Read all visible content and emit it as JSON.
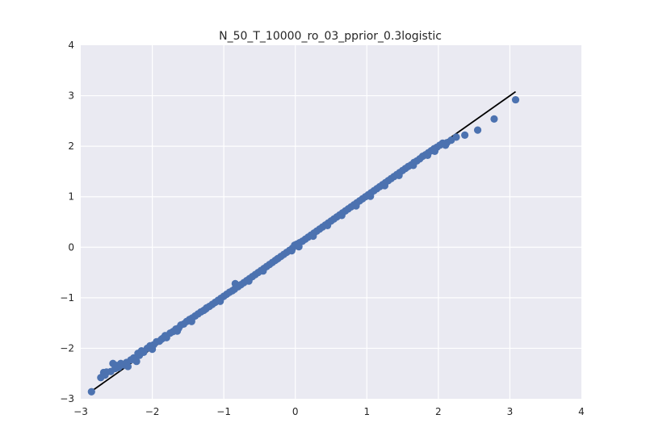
{
  "chart_data": {
    "type": "scatter",
    "title": "N_50_T_10000_ro_03_pprior_0.3logistic",
    "xlabel": "",
    "ylabel": "",
    "xlim": [
      -3,
      4
    ],
    "ylim": [
      -3,
      4
    ],
    "xticks": [
      "−3",
      "−2",
      "−1",
      "0",
      "1",
      "2",
      "3",
      "4"
    ],
    "yticks": [
      "−3",
      "−2",
      "−1",
      "0",
      "1",
      "2",
      "3",
      "4"
    ],
    "grid": true,
    "colors": {
      "background": "#EAEAF2",
      "grid": "#FFFFFF",
      "points": "#4C72B0",
      "line": "#000000"
    },
    "reference_line": {
      "x": [
        -2.85,
        3.08
      ],
      "y": [
        -2.85,
        3.08
      ]
    },
    "series": [
      {
        "points": [
          [
            -2.85,
            -2.86
          ],
          [
            -2.68,
            -2.48
          ],
          [
            -2.66,
            -2.53
          ],
          [
            -2.64,
            -2.47
          ],
          [
            -2.58,
            -2.46
          ],
          [
            -2.55,
            -2.3
          ],
          [
            -2.5,
            -2.34
          ],
          [
            -2.47,
            -2.38
          ],
          [
            -2.44,
            -2.3
          ],
          [
            -2.4,
            -2.33
          ],
          [
            -2.36,
            -2.28
          ],
          [
            -2.3,
            -2.23
          ],
          [
            -2.26,
            -2.19
          ],
          [
            -2.22,
            -2.26
          ],
          [
            -2.2,
            -2.1
          ],
          [
            -2.15,
            -2.05
          ],
          [
            -2.12,
            -2.08
          ],
          [
            -2.07,
            -2.0
          ],
          [
            -2.03,
            -1.95
          ],
          [
            -1.98,
            -1.93
          ],
          [
            -1.94,
            -1.87
          ],
          [
            -1.9,
            -1.86
          ],
          [
            -1.87,
            -1.82
          ],
          [
            -1.82,
            -1.75
          ],
          [
            -1.8,
            -1.79
          ],
          [
            -1.75,
            -1.7
          ],
          [
            -1.71,
            -1.67
          ],
          [
            -1.67,
            -1.62
          ],
          [
            -1.63,
            -1.6
          ],
          [
            -1.6,
            -1.54
          ],
          [
            -1.56,
            -1.52
          ],
          [
            -1.52,
            -1.47
          ],
          [
            -1.48,
            -1.43
          ],
          [
            -1.44,
            -1.4
          ],
          [
            -1.4,
            -1.36
          ],
          [
            -1.36,
            -1.32
          ],
          [
            -1.32,
            -1.28
          ],
          [
            -1.28,
            -1.25
          ],
          [
            -1.24,
            -1.2
          ],
          [
            -1.2,
            -1.17
          ],
          [
            -1.16,
            -1.13
          ],
          [
            -1.12,
            -1.09
          ],
          [
            -1.08,
            -1.05
          ],
          [
            -1.04,
            -1.01
          ],
          [
            -1.0,
            -0.97
          ],
          [
            -0.96,
            -0.93
          ],
          [
            -0.92,
            -0.89
          ],
          [
            -0.88,
            -0.86
          ],
          [
            -0.84,
            -0.72
          ],
          [
            -0.8,
            -0.78
          ],
          [
            -0.76,
            -0.74
          ],
          [
            -0.72,
            -0.7
          ],
          [
            -0.68,
            -0.66
          ],
          [
            -0.64,
            -0.62
          ],
          [
            -0.6,
            -0.58
          ],
          [
            -0.56,
            -0.54
          ],
          [
            -0.52,
            -0.5
          ],
          [
            -0.48,
            -0.46
          ],
          [
            -0.44,
            -0.42
          ],
          [
            -0.4,
            -0.38
          ],
          [
            -0.36,
            -0.34
          ],
          [
            -0.32,
            -0.3
          ],
          [
            -0.28,
            -0.26
          ],
          [
            -0.24,
            -0.22
          ],
          [
            -0.2,
            -0.18
          ],
          [
            -0.16,
            -0.14
          ],
          [
            -0.12,
            -0.1
          ],
          [
            -0.08,
            -0.06
          ],
          [
            -0.04,
            -0.02
          ],
          [
            -0.01,
            0.04
          ],
          [
            0.02,
            0.06
          ],
          [
            0.06,
            0.09
          ],
          [
            0.1,
            0.12
          ],
          [
            0.14,
            0.16
          ],
          [
            0.18,
            0.2
          ],
          [
            0.22,
            0.24
          ],
          [
            0.26,
            0.28
          ],
          [
            0.3,
            0.32
          ],
          [
            0.34,
            0.36
          ],
          [
            0.38,
            0.4
          ],
          [
            0.42,
            0.44
          ],
          [
            0.46,
            0.48
          ],
          [
            0.5,
            0.52
          ],
          [
            0.54,
            0.56
          ],
          [
            0.58,
            0.6
          ],
          [
            0.62,
            0.64
          ],
          [
            0.66,
            0.68
          ],
          [
            0.7,
            0.72
          ],
          [
            0.74,
            0.76
          ],
          [
            0.78,
            0.8
          ],
          [
            0.82,
            0.84
          ],
          [
            0.86,
            0.88
          ],
          [
            0.9,
            0.92
          ],
          [
            0.94,
            0.96
          ],
          [
            0.98,
            1.0
          ],
          [
            1.02,
            1.04
          ],
          [
            1.06,
            1.08
          ],
          [
            1.1,
            1.12
          ],
          [
            1.14,
            1.16
          ],
          [
            1.18,
            1.2
          ],
          [
            1.22,
            1.24
          ],
          [
            1.26,
            1.28
          ],
          [
            1.3,
            1.32
          ],
          [
            1.34,
            1.36
          ],
          [
            1.38,
            1.4
          ],
          [
            1.42,
            1.44
          ],
          [
            1.46,
            1.48
          ],
          [
            1.5,
            1.52
          ],
          [
            1.54,
            1.56
          ],
          [
            1.58,
            1.6
          ],
          [
            1.62,
            1.63
          ],
          [
            1.66,
            1.68
          ],
          [
            1.7,
            1.71
          ],
          [
            1.74,
            1.75
          ],
          [
            1.78,
            1.8
          ],
          [
            1.82,
            1.83
          ],
          [
            1.86,
            1.87
          ],
          [
            1.9,
            1.91
          ],
          [
            1.94,
            1.95
          ],
          [
            1.98,
            1.98
          ],
          [
            2.02,
            2.02
          ],
          [
            2.06,
            2.06
          ],
          [
            2.12,
            2.07
          ],
          [
            2.18,
            2.12
          ],
          [
            2.25,
            2.18
          ],
          [
            2.37,
            2.22
          ],
          [
            2.55,
            2.32
          ],
          [
            2.78,
            2.54
          ],
          [
            3.08,
            2.92
          ],
          [
            -2.72,
            -2.58
          ],
          [
            -2.52,
            -2.4
          ],
          [
            -2.34,
            -2.36
          ],
          [
            -2.18,
            -2.14
          ],
          [
            -2.0,
            -2.02
          ],
          [
            -1.85,
            -1.8
          ],
          [
            -1.65,
            -1.66
          ],
          [
            -1.45,
            -1.47
          ],
          [
            -1.25,
            -1.22
          ],
          [
            -1.05,
            -1.07
          ],
          [
            -0.85,
            -0.83
          ],
          [
            -0.65,
            -0.67
          ],
          [
            -0.45,
            -0.47
          ],
          [
            -0.25,
            -0.23
          ],
          [
            -0.05,
            -0.07
          ],
          [
            0.05,
            0.01
          ],
          [
            0.25,
            0.22
          ],
          [
            0.45,
            0.43
          ],
          [
            0.65,
            0.63
          ],
          [
            0.85,
            0.82
          ],
          [
            1.05,
            1.01
          ],
          [
            1.25,
            1.22
          ],
          [
            1.45,
            1.42
          ],
          [
            1.65,
            1.62
          ],
          [
            1.85,
            1.82
          ],
          [
            1.95,
            1.9
          ],
          [
            2.1,
            2.02
          ]
        ]
      }
    ]
  }
}
